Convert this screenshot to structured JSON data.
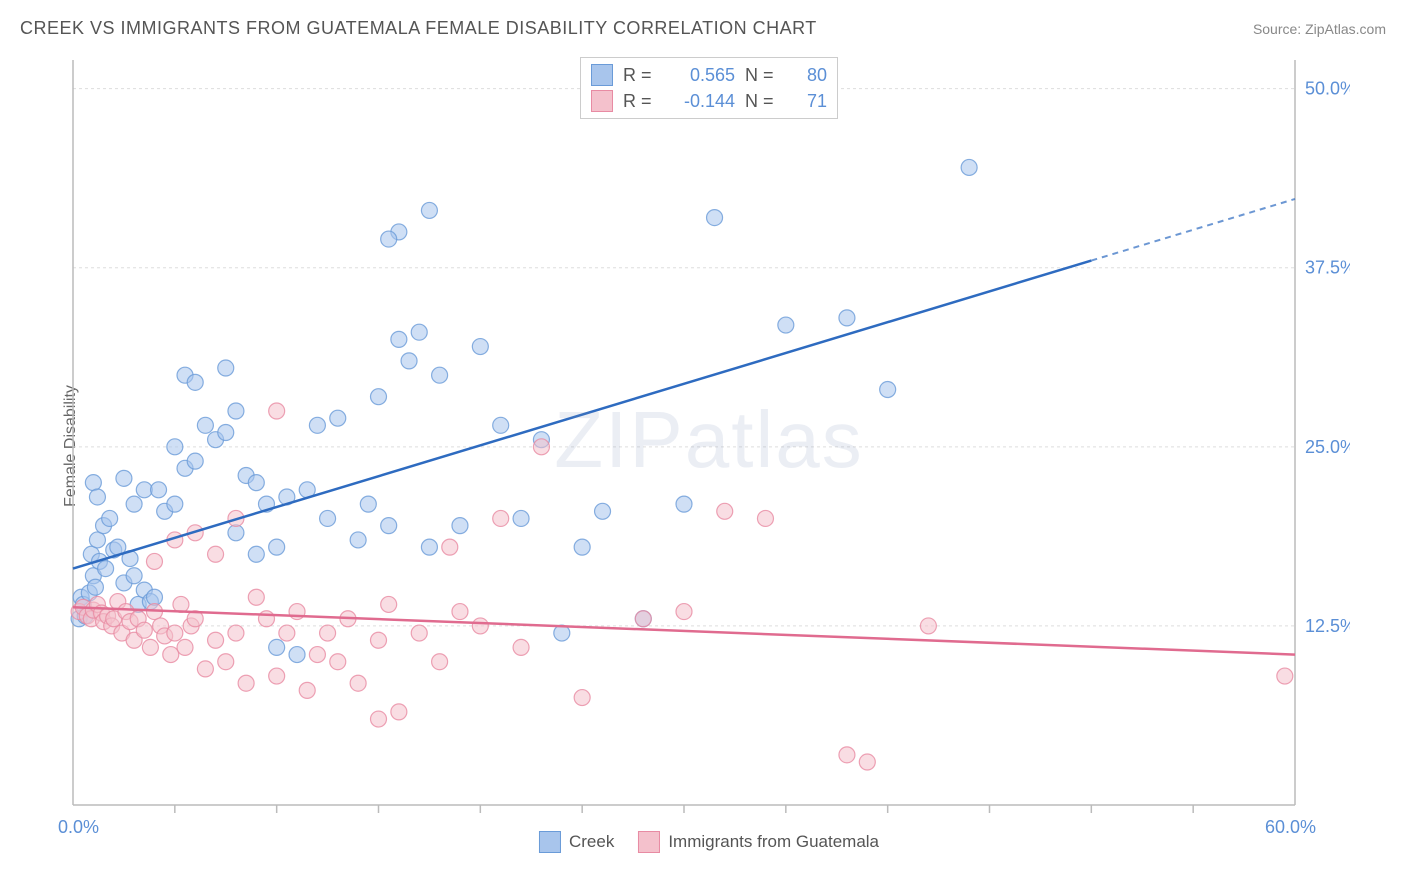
{
  "title": "CREEK VS IMMIGRANTS FROM GUATEMALA FEMALE DISABILITY CORRELATION CHART",
  "source_label": "Source: ",
  "source_name": "ZipAtlas.com",
  "ylabel": "Female Disability",
  "watermark": "ZIPatlas",
  "chart": {
    "type": "scatter",
    "xlim": [
      0,
      60
    ],
    "ylim": [
      0,
      52
    ],
    "y_gridlines": [
      12.5,
      25.0,
      37.5,
      50.0
    ],
    "y_gridline_labels": [
      "12.5%",
      "25.0%",
      "37.5%",
      "50.0%"
    ],
    "x_ticks": [
      5,
      10,
      15,
      20,
      25,
      30,
      35,
      40,
      45,
      50,
      55
    ],
    "x_min_label": "0.0%",
    "x_max_label": "60.0%",
    "background_color": "#ffffff",
    "grid_color": "#dddddd",
    "axis_color": "#bbbbbb",
    "axis_label_color": "#5b8fd6",
    "point_radius": 8,
    "point_opacity": 0.55,
    "series": [
      {
        "name": "Creek",
        "color_fill": "#a8c5ec",
        "color_stroke": "#6a9bd8",
        "line_color": "#2e6bc0",
        "R": "0.565",
        "N": "80",
        "trend": {
          "x1": 0,
          "y1": 16.5,
          "x2": 50,
          "y2": 38.0,
          "dash_from_x": 50,
          "dash_to_x": 60,
          "dash_y2": 42.3
        },
        "points": [
          [
            0.3,
            13.0
          ],
          [
            0.4,
            14.5
          ],
          [
            0.5,
            14.0
          ],
          [
            0.6,
            13.2
          ],
          [
            0.8,
            14.8
          ],
          [
            0.9,
            17.5
          ],
          [
            1.0,
            16.0
          ],
          [
            1.1,
            15.2
          ],
          [
            1.2,
            18.5
          ],
          [
            1.3,
            17.0
          ],
          [
            1.5,
            19.5
          ],
          [
            1.6,
            16.5
          ],
          [
            1.8,
            20.0
          ],
          [
            2.0,
            17.8
          ],
          [
            1.0,
            22.5
          ],
          [
            1.2,
            21.5
          ],
          [
            2.2,
            18.0
          ],
          [
            2.5,
            15.5
          ],
          [
            2.8,
            17.2
          ],
          [
            3.0,
            16.0
          ],
          [
            3.2,
            14.0
          ],
          [
            3.5,
            15.0
          ],
          [
            3.8,
            14.2
          ],
          [
            4.0,
            14.5
          ],
          [
            2.5,
            22.8
          ],
          [
            3.0,
            21.0
          ],
          [
            3.5,
            22.0
          ],
          [
            4.2,
            22.0
          ],
          [
            4.5,
            20.5
          ],
          [
            5.0,
            21.0
          ],
          [
            5.5,
            23.5
          ],
          [
            6.0,
            24.0
          ],
          [
            5.0,
            25.0
          ],
          [
            6.5,
            26.5
          ],
          [
            7.0,
            25.5
          ],
          [
            7.5,
            26.0
          ],
          [
            8.0,
            27.5
          ],
          [
            8.5,
            23.0
          ],
          [
            9.0,
            22.5
          ],
          [
            9.5,
            21.0
          ],
          [
            5.5,
            30.0
          ],
          [
            6.0,
            29.5
          ],
          [
            7.5,
            30.5
          ],
          [
            8.0,
            19.0
          ],
          [
            9.0,
            17.5
          ],
          [
            10.0,
            18.0
          ],
          [
            10.5,
            21.5
          ],
          [
            11.0,
            10.5
          ],
          [
            11.5,
            22.0
          ],
          [
            12.0,
            26.5
          ],
          [
            12.5,
            20.0
          ],
          [
            13.0,
            27.0
          ],
          [
            14.0,
            18.5
          ],
          [
            14.5,
            21.0
          ],
          [
            15.0,
            28.5
          ],
          [
            15.5,
            19.5
          ],
          [
            16.0,
            32.5
          ],
          [
            16.5,
            31.0
          ],
          [
            17.0,
            33.0
          ],
          [
            17.5,
            18.0
          ],
          [
            18.0,
            30.0
          ],
          [
            16.0,
            40.0
          ],
          [
            17.5,
            41.5
          ],
          [
            15.5,
            39.5
          ],
          [
            19.0,
            19.5
          ],
          [
            20.0,
            32.0
          ],
          [
            21.0,
            26.5
          ],
          [
            22.0,
            20.0
          ],
          [
            23.0,
            25.5
          ],
          [
            24.0,
            12.0
          ],
          [
            25.0,
            18.0
          ],
          [
            26.0,
            20.5
          ],
          [
            28.0,
            13.0
          ],
          [
            30.0,
            21.0
          ],
          [
            31.5,
            41.0
          ],
          [
            35.0,
            33.5
          ],
          [
            38.0,
            34.0
          ],
          [
            40.0,
            29.0
          ],
          [
            44.0,
            44.5
          ],
          [
            10.0,
            11.0
          ]
        ]
      },
      {
        "name": "Immigrants from Guatemala",
        "color_fill": "#f4c1cc",
        "color_stroke": "#e88ba3",
        "line_color": "#e06b8f",
        "R": "-0.144",
        "N": "71",
        "trend": {
          "x1": 0,
          "y1": 13.8,
          "x2": 60,
          "y2": 10.5
        },
        "points": [
          [
            0.3,
            13.5
          ],
          [
            0.5,
            13.8
          ],
          [
            0.7,
            13.2
          ],
          [
            0.9,
            13.0
          ],
          [
            1.0,
            13.6
          ],
          [
            1.2,
            14.0
          ],
          [
            1.4,
            13.4
          ],
          [
            1.5,
            12.8
          ],
          [
            1.7,
            13.2
          ],
          [
            1.9,
            12.5
          ],
          [
            2.0,
            13.0
          ],
          [
            2.2,
            14.2
          ],
          [
            2.4,
            12.0
          ],
          [
            2.6,
            13.5
          ],
          [
            2.8,
            12.8
          ],
          [
            3.0,
            11.5
          ],
          [
            3.2,
            13.0
          ],
          [
            3.5,
            12.2
          ],
          [
            3.8,
            11.0
          ],
          [
            4.0,
            13.5
          ],
          [
            4.3,
            12.5
          ],
          [
            4.5,
            11.8
          ],
          [
            4.8,
            10.5
          ],
          [
            5.0,
            12.0
          ],
          [
            5.3,
            14.0
          ],
          [
            5.5,
            11.0
          ],
          [
            5.8,
            12.5
          ],
          [
            6.0,
            13.0
          ],
          [
            6.5,
            9.5
          ],
          [
            7.0,
            11.5
          ],
          [
            7.5,
            10.0
          ],
          [
            8.0,
            12.0
          ],
          [
            8.5,
            8.5
          ],
          [
            9.0,
            14.5
          ],
          [
            9.5,
            13.0
          ],
          [
            10.0,
            9.0
          ],
          [
            10.5,
            12.0
          ],
          [
            11.0,
            13.5
          ],
          [
            11.5,
            8.0
          ],
          [
            12.0,
            10.5
          ],
          [
            4.0,
            17.0
          ],
          [
            5.0,
            18.5
          ],
          [
            6.0,
            19.0
          ],
          [
            7.0,
            17.5
          ],
          [
            8.0,
            20.0
          ],
          [
            10.0,
            27.5
          ],
          [
            12.5,
            12.0
          ],
          [
            13.0,
            10.0
          ],
          [
            13.5,
            13.0
          ],
          [
            14.0,
            8.5
          ],
          [
            15.0,
            11.5
          ],
          [
            15.5,
            14.0
          ],
          [
            16.0,
            6.5
          ],
          [
            17.0,
            12.0
          ],
          [
            18.0,
            10.0
          ],
          [
            18.5,
            18.0
          ],
          [
            19.0,
            13.5
          ],
          [
            20.0,
            12.5
          ],
          [
            21.0,
            20.0
          ],
          [
            22.0,
            11.0
          ],
          [
            23.0,
            25.0
          ],
          [
            25.0,
            7.5
          ],
          [
            28.0,
            13.0
          ],
          [
            30.0,
            13.5
          ],
          [
            32.0,
            20.5
          ],
          [
            34.0,
            20.0
          ],
          [
            38.0,
            3.5
          ],
          [
            39.0,
            3.0
          ],
          [
            42.0,
            12.5
          ],
          [
            59.5,
            9.0
          ],
          [
            15.0,
            6.0
          ]
        ]
      }
    ]
  },
  "legend_bottom": [
    {
      "label": "Creek",
      "fill": "#a8c5ec",
      "stroke": "#6a9bd8"
    },
    {
      "label": "Immigrants from Guatemala",
      "fill": "#f4c1cc",
      "stroke": "#e88ba3"
    }
  ]
}
